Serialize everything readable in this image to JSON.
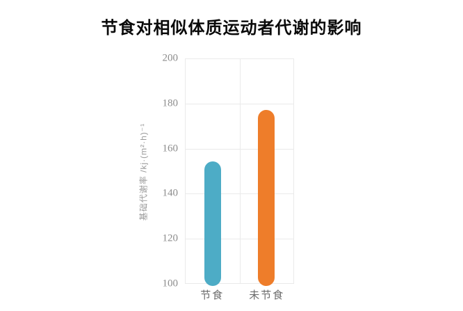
{
  "page": {
    "background": "#ffffff"
  },
  "chart_data": {
    "type": "bar",
    "title": "节食对相似体质运动者代谢的影响",
    "categories": [
      "节食",
      "未节食"
    ],
    "values": [
      154,
      177
    ],
    "bar_colors": [
      "#4dacc6",
      "#ee7d2a"
    ],
    "ylabel": "基础代谢率 /kj·(m²·h)⁻¹",
    "xlabel": "",
    "ylim": [
      100,
      200
    ],
    "yticks": [
      100,
      120,
      140,
      160,
      180,
      200
    ],
    "grid": true,
    "grid_color": "#eaeaea",
    "tick_color": "#8c8c8c",
    "xtick_color": "#6b6b6b",
    "title_color": "#0a0a0a",
    "legend_position": "none",
    "bar_shape": "rounded-capsule"
  }
}
